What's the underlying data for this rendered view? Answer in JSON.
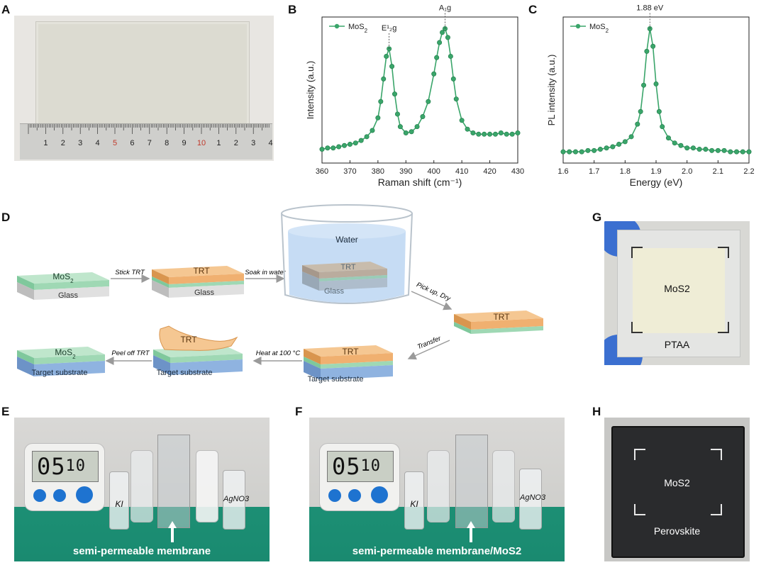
{
  "panels": {
    "A": "A",
    "B": "B",
    "C": "C",
    "D": "D",
    "E": "E",
    "F": "F",
    "G": "G",
    "H": "H"
  },
  "ruler": {
    "digits": [
      "1",
      "2",
      "3",
      "4",
      "5",
      "6",
      "7",
      "8",
      "9",
      "10",
      "1",
      "2",
      "3",
      "4"
    ],
    "red_indices": [
      4,
      9
    ]
  },
  "chart_data": [
    {
      "type": "line",
      "panel": "B",
      "series": [
        {
          "name": "MoS2",
          "x": [
            360,
            362,
            364,
            366,
            368,
            370,
            372,
            374,
            376,
            378,
            380,
            381,
            382,
            383,
            384,
            385,
            386,
            387,
            388,
            390,
            392,
            394,
            396,
            398,
            400,
            401,
            402,
            403,
            404,
            405,
            406,
            407,
            408,
            410,
            412,
            414,
            416,
            418,
            420,
            422,
            424,
            426,
            428,
            430
          ],
          "y": [
            0.04,
            0.05,
            0.05,
            0.06,
            0.07,
            0.08,
            0.09,
            0.11,
            0.14,
            0.19,
            0.29,
            0.42,
            0.6,
            0.78,
            0.84,
            0.7,
            0.48,
            0.32,
            0.22,
            0.17,
            0.18,
            0.22,
            0.3,
            0.42,
            0.64,
            0.77,
            0.89,
            0.97,
            1.0,
            0.93,
            0.78,
            0.6,
            0.44,
            0.27,
            0.2,
            0.17,
            0.16,
            0.16,
            0.16,
            0.16,
            0.17,
            0.16,
            0.16,
            0.17
          ]
        }
      ],
      "xlabel": "Raman shift (cm⁻¹)",
      "ylabel": "Intensity (a.u.)",
      "xlim": [
        360,
        430
      ],
      "xticks": [
        "360",
        "370",
        "380",
        "390",
        "400",
        "410",
        "420",
        "430"
      ],
      "annotations": [
        {
          "text": "E¹₂g",
          "x": 384
        },
        {
          "text": "A₁g",
          "x": 404
        }
      ],
      "legend_placement": "top-left",
      "color": "#3aa56a"
    },
    {
      "type": "line",
      "panel": "C",
      "series": [
        {
          "name": "MoS2",
          "x": [
            1.6,
            1.62,
            1.64,
            1.66,
            1.68,
            1.7,
            1.72,
            1.74,
            1.76,
            1.78,
            1.8,
            1.82,
            1.84,
            1.85,
            1.86,
            1.87,
            1.88,
            1.89,
            1.9,
            1.91,
            1.92,
            1.94,
            1.96,
            1.98,
            2.0,
            2.02,
            2.04,
            2.06,
            2.08,
            2.1,
            2.12,
            2.14,
            2.16,
            2.18,
            2.2
          ],
          "y": [
            0.02,
            0.02,
            0.02,
            0.02,
            0.03,
            0.03,
            0.04,
            0.05,
            0.06,
            0.08,
            0.1,
            0.14,
            0.24,
            0.34,
            0.55,
            0.82,
            1.0,
            0.86,
            0.56,
            0.34,
            0.22,
            0.13,
            0.09,
            0.07,
            0.05,
            0.05,
            0.04,
            0.04,
            0.03,
            0.03,
            0.03,
            0.02,
            0.02,
            0.02,
            0.02
          ]
        }
      ],
      "xlabel": "Energy (eV)",
      "ylabel": "PL intensity (a.u.)",
      "xlim": [
        1.6,
        2.2
      ],
      "xticks": [
        "1.6",
        "1.7",
        "1.8",
        "1.9",
        "2.0",
        "2.1",
        "2.2"
      ],
      "annotations": [
        {
          "text": "1.88 eV",
          "x": 1.88
        }
      ],
      "legend_placement": "top-left",
      "color": "#3aa56a"
    }
  ],
  "legend": {
    "prefix": "MoS",
    "sub": "2"
  },
  "schematic": {
    "mos2_prefix": "MoS",
    "mos2_sub": "2",
    "glass": "Glass",
    "trt": "TRT",
    "water": "Water",
    "target": "Target substrate",
    "steps": {
      "stick": "Stick TRT",
      "soak": "Soak in water",
      "pick": "Pick up, Dry",
      "transfer": "Transfer",
      "heat": "Heat at 100 °C",
      "peel": "Peel off TRT"
    }
  },
  "photo_e": {
    "timer_min": "05",
    "timer_sec": "10",
    "vial_left": "KI",
    "vial_right": "AgNO3",
    "caption": "semi-permeable membrane"
  },
  "photo_f": {
    "timer_min": "05",
    "timer_sec": "10",
    "vial_left": "KI",
    "vial_right": "AgNO3",
    "caption": "semi-permeable membrane/MoS2"
  },
  "photo_g": {
    "mos2": "MoS2",
    "ptaa": "PTAA"
  },
  "photo_h": {
    "mos2": "MoS2",
    "perovskite": "Perovskite"
  },
  "colors": {
    "mos2_green": "#9fd8b4",
    "trt_orange": "#f0b070",
    "glass_gray": "#d9d9d9",
    "target_blue": "#8fb3e0",
    "water_blue": "#bcd6f2",
    "series_green": "#3aa56a"
  }
}
